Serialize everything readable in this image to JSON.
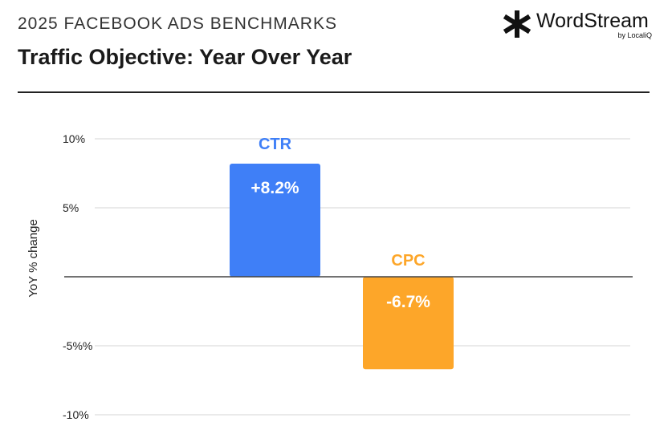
{
  "header": {
    "kicker": "2025 FACEBOOK ADS BENCHMARKS",
    "title": "Traffic Objective: Year Over Year"
  },
  "logo": {
    "name": "WordStream",
    "sub": "by LocaliQ"
  },
  "colors": {
    "ctr": "#3f7ff7",
    "cpc": "#fda629"
  },
  "chart_data": {
    "type": "bar",
    "title": "Traffic Objective: Year Over Year",
    "xlabel": "",
    "ylabel": "YoY % change",
    "ylim": [
      -10,
      10
    ],
    "yticks": [
      {
        "value": 10,
        "label": "10%"
      },
      {
        "value": 5,
        "label": "5%"
      },
      {
        "value": -5,
        "label": "-5%%"
      },
      {
        "value": -10,
        "label": "-10%"
      }
    ],
    "categories": [
      "CTR",
      "CPC"
    ],
    "values": [
      8.2,
      -6.7
    ],
    "data_labels": [
      "+8.2%",
      "-6.7%"
    ],
    "grid": true
  }
}
